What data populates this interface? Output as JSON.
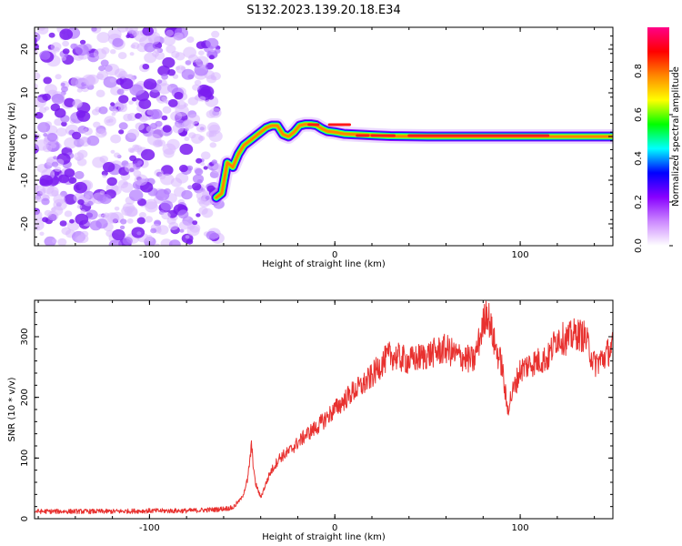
{
  "title": "S132.2023.139.20.18.E34",
  "chart_data": [
    {
      "type": "heatmap",
      "xlabel": "Height of straight line (km)",
      "ylabel": "Frequency (Hz)",
      "xlim": [
        -162,
        150
      ],
      "ylim": [
        -25,
        25
      ],
      "x_ticks": [
        -100,
        0,
        100
      ],
      "x_tick_labels": [
        "-100",
        "0",
        "100"
      ],
      "y_ticks": [
        -20,
        -10,
        0,
        10,
        20
      ],
      "y_tick_labels": [
        "-20",
        "-10",
        "0",
        "10",
        "20"
      ],
      "noise_region_x": [
        -162,
        -64
      ],
      "ridge": {
        "x": [
          -64,
          -61,
          -58,
          -55,
          -52,
          -49,
          -46,
          -43,
          -40,
          -37,
          -34,
          -31,
          -28,
          -25,
          -22,
          -19,
          -16,
          -13,
          -10,
          -7,
          -4,
          0,
          5,
          10,
          15,
          20,
          30,
          50,
          80,
          110,
          150
        ],
        "y": [
          -14,
          -13,
          -6,
          -7,
          -4,
          -2,
          -1,
          0,
          1,
          2,
          2.5,
          2.5,
          0.5,
          0,
          1,
          2.5,
          2.8,
          2.8,
          2.6,
          1.8,
          1.2,
          1,
          0.6,
          0.5,
          0.4,
          0.3,
          0.1,
          0,
          0,
          0,
          0
        ]
      },
      "colorbar": {
        "label": "Normalized spectral amplitude",
        "range": [
          0,
          1
        ],
        "ticks": [
          0.0,
          0.2,
          0.4,
          0.6,
          0.8
        ],
        "tick_labels": [
          "0.0",
          "0.2",
          "0.4",
          "0.6",
          "0.8"
        ],
        "colormap": [
          "#ffffff",
          "#cc88ff",
          "#8800ff",
          "#0000ff",
          "#00ffff",
          "#00ff00",
          "#ffff00",
          "#ff8800",
          "#ff0000",
          "#ff0088"
        ]
      }
    },
    {
      "type": "line",
      "xlabel": "Height of straight line (km)",
      "ylabel": "SNR (10 * v/v)",
      "xlim": [
        -162,
        150
      ],
      "ylim": [
        0,
        360
      ],
      "x_ticks": [
        -100,
        0,
        100
      ],
      "x_tick_labels": [
        "-100",
        "0",
        "100"
      ],
      "y_ticks": [
        0,
        100,
        200,
        300
      ],
      "y_tick_labels": [
        "0",
        "100",
        "200",
        "300"
      ],
      "series": [
        {
          "name": "SNR",
          "color": "#e8312f",
          "x": [
            -162,
            -140,
            -120,
            -100,
            -80,
            -65,
            -55,
            -50,
            -47,
            -45,
            -43,
            -40,
            -35,
            -30,
            -25,
            -20,
            -15,
            -10,
            -5,
            0,
            5,
            10,
            15,
            20,
            25,
            30,
            35,
            40,
            45,
            50,
            55,
            60,
            65,
            70,
            75,
            78,
            82,
            86,
            88,
            90,
            93,
            95,
            100,
            105,
            110,
            115,
            120,
            125,
            130,
            135,
            140,
            145,
            150
          ],
          "y": [
            12,
            12,
            12,
            13,
            13,
            15,
            18,
            35,
            65,
            120,
            60,
            35,
            75,
            100,
            110,
            125,
            140,
            150,
            165,
            180,
            195,
            210,
            220,
            235,
            255,
            270,
            265,
            260,
            265,
            270,
            275,
            280,
            270,
            265,
            260,
            295,
            345,
            290,
            270,
            255,
            180,
            200,
            245,
            255,
            260,
            265,
            300,
            295,
            305,
            300,
            255,
            265,
            285
          ]
        }
      ]
    }
  ]
}
